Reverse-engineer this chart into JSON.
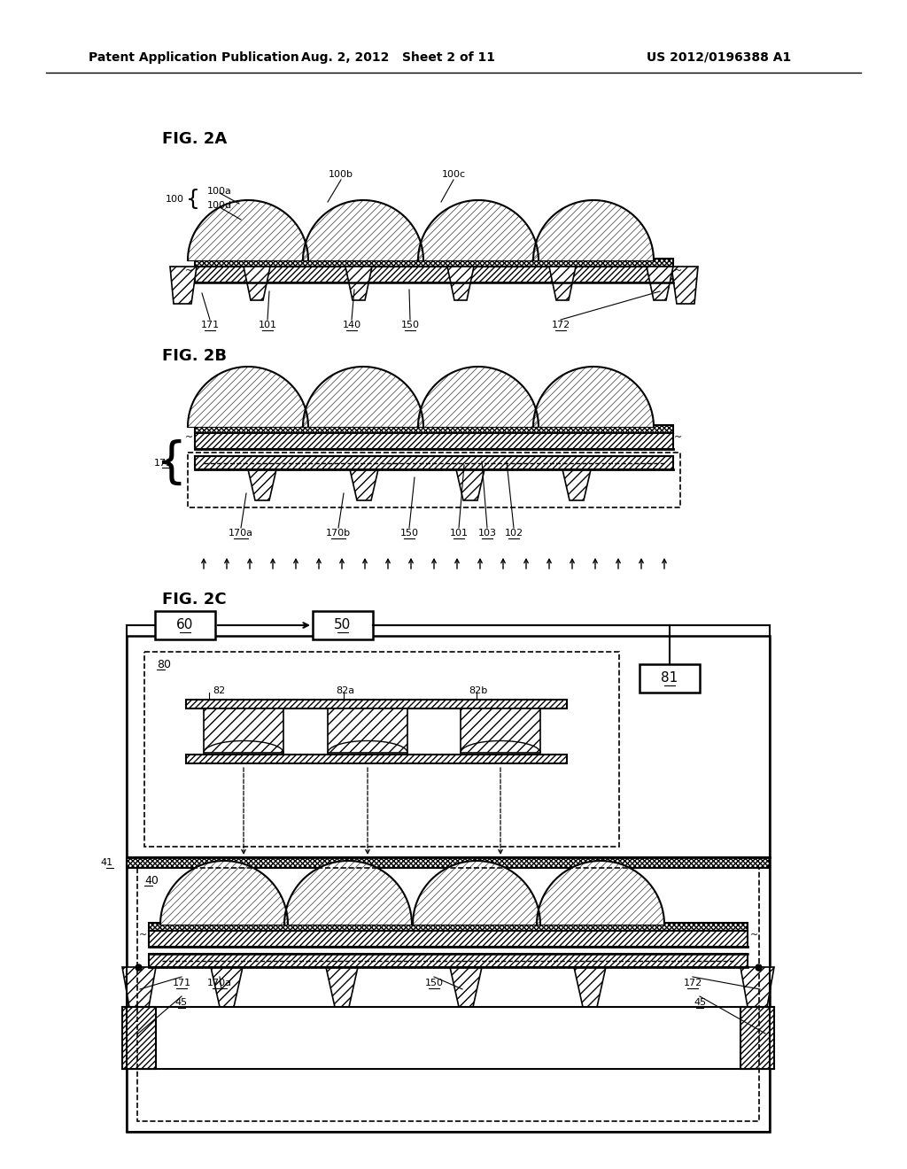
{
  "bg": "#ffffff",
  "lc": "#000000",
  "header_left": "Patent Application Publication",
  "header_mid": "Aug. 2, 2012   Sheet 2 of 11",
  "header_right": "US 2012/0196388 A1",
  "fig2a": "FIG. 2A",
  "fig2b": "FIG. 2B",
  "fig2c": "FIG. 2C"
}
